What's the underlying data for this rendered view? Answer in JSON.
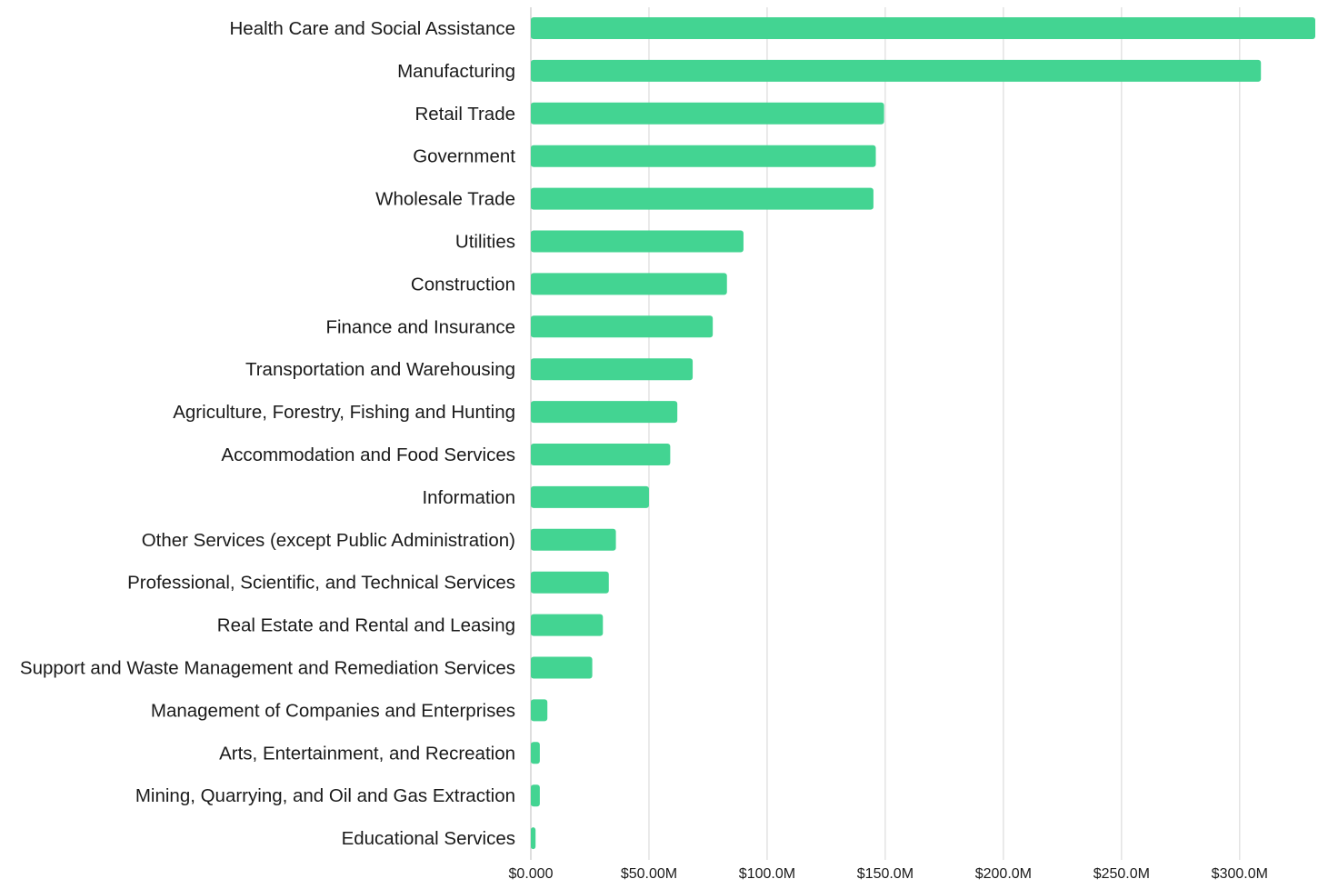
{
  "chart_data": {
    "type": "bar",
    "orientation": "horizontal",
    "categories": [
      "Health Care and Social Assistance",
      "Manufacturing",
      "Retail Trade",
      "Government",
      "Wholesale Trade",
      "Utilities",
      "Construction",
      "Finance and Insurance",
      "Transportation and Warehousing",
      "Agriculture, Forestry, Fishing and Hunting",
      "Accommodation and Food Services",
      "Information",
      "Other Services (except Public Administration)",
      "Professional, Scientific, and Technical Services",
      "Real Estate and Rental and Leasing",
      "Support and Waste Management and Remediation Services",
      "Management of Companies and Enterprises",
      "Arts, Entertainment, and Recreation",
      "Mining, Quarrying, and Oil and Gas Extraction",
      "Educational Services"
    ],
    "values": [
      332000000,
      309000000,
      149500000,
      146000000,
      145000000,
      90000000,
      83000000,
      77000000,
      68500000,
      62000000,
      59000000,
      50000000,
      36000000,
      33000000,
      30500000,
      26000000,
      7000000,
      3800000,
      3800000,
      2000000
    ],
    "xlim": [
      0,
      332000000
    ],
    "x_ticks": [
      0,
      50000000,
      100000000,
      150000000,
      200000000,
      250000000,
      300000000
    ],
    "x_tick_labels": [
      "$0.000",
      "$50.00M",
      "$100.0M",
      "$150.0M",
      "$200.0M",
      "$250.0M",
      "$300.0M"
    ],
    "title": "",
    "xlabel": "",
    "ylabel": "",
    "grid": "vertical",
    "legend": "none",
    "bar_color": "#43d492"
  }
}
